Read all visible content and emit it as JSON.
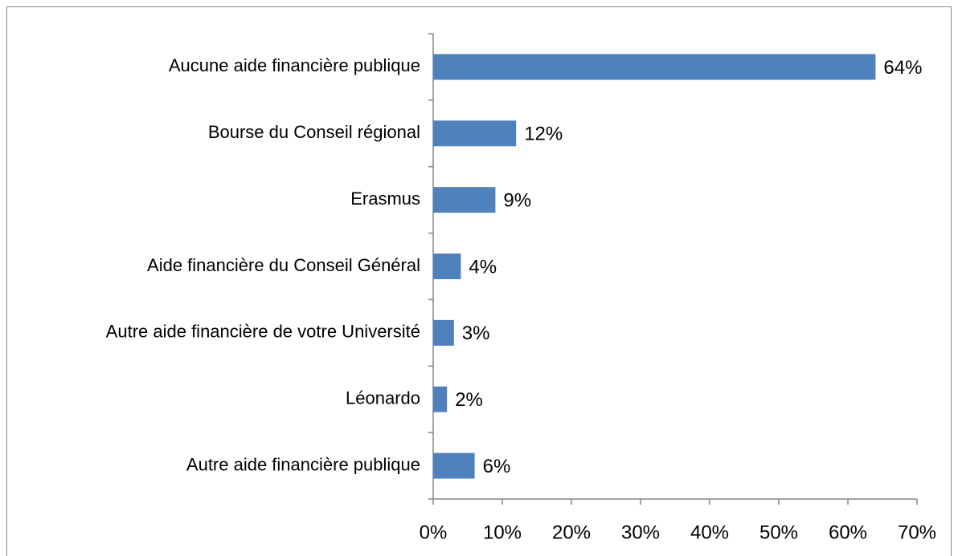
{
  "chart_data": {
    "type": "bar",
    "orientation": "horizontal",
    "categories": [
      "Aucune aide financière publique",
      "Bourse du Conseil régional",
      "Erasmus",
      "Aide financière du Conseil Général",
      "Autre aide financière de votre Université",
      "Léonardo",
      "Autre aide financière publique"
    ],
    "values": [
      64,
      12,
      9,
      4,
      3,
      2,
      6
    ],
    "value_labels": [
      "64%",
      "12%",
      "9%",
      "4%",
      "3%",
      "2%",
      "6%"
    ],
    "color": "#4f81bd",
    "xlim": [
      0,
      70
    ],
    "xticks": [
      {
        "value": 0,
        "label": "0%"
      },
      {
        "value": 10,
        "label": "10%"
      },
      {
        "value": 20,
        "label": "20%"
      },
      {
        "value": 30,
        "label": "30%"
      },
      {
        "value": 40,
        "label": "40%"
      },
      {
        "value": 50,
        "label": "50%"
      },
      {
        "value": 60,
        "label": "60%"
      },
      {
        "value": 70,
        "label": "70%"
      }
    ],
    "grid": false
  }
}
